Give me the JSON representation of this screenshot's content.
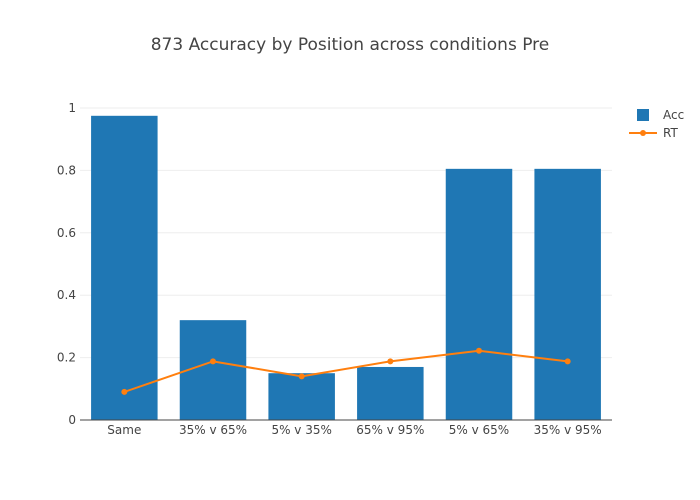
{
  "chart_data": {
    "type": "bar",
    "title": "873 Accuracy by Position across conditions Pre",
    "xlabel": "",
    "ylabel": "",
    "categories": [
      "Same",
      "35% v 65%",
      "5% v 35%",
      "65% v 95%",
      "5% v 65%",
      "35% v 95%"
    ],
    "series": [
      {
        "name": "Acc",
        "kind": "bar",
        "color": "#1f77b4",
        "values": [
          0.975,
          0.32,
          0.15,
          0.17,
          0.805,
          0.805
        ]
      },
      {
        "name": "RT",
        "kind": "line",
        "color": "#ff7f0e",
        "values": [
          0.09,
          0.188,
          0.14,
          0.188,
          0.222,
          0.188
        ]
      }
    ],
    "ylim": [
      0,
      1
    ],
    "yticks": [
      0,
      0.2,
      0.4,
      0.6,
      0.8,
      1
    ],
    "ytick_labels": [
      "0",
      "0.2",
      "0.4",
      "0.6",
      "0.8",
      "1"
    ],
    "grid": true,
    "legend_position": "top-right"
  }
}
